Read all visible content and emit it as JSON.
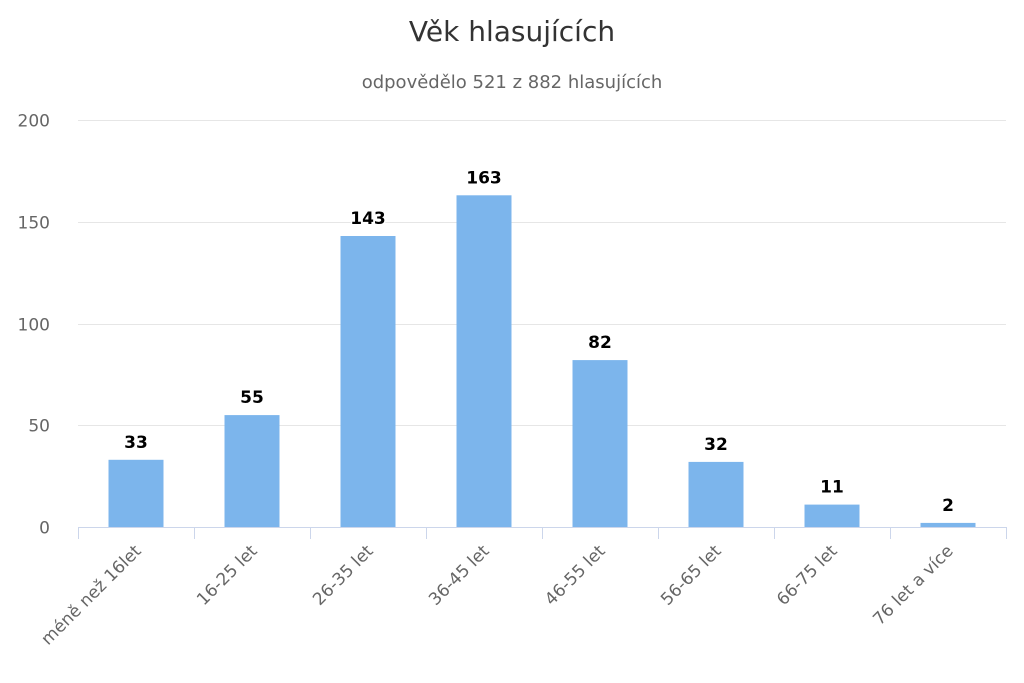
{
  "chart_data": {
    "type": "bar",
    "title": "Věk hlasujících",
    "subtitle": "odpovědělo 521 z 882 hlasujících",
    "categories": [
      "méně než 16let",
      "16-25 let",
      "26-35 let",
      "36-45 let",
      "46-55 let",
      "56-65 let",
      "66-75 let",
      "76 let a více"
    ],
    "values": [
      33,
      55,
      143,
      163,
      82,
      32,
      11,
      2
    ],
    "ylim": [
      0,
      200
    ],
    "yticks": [
      0,
      50,
      100,
      150,
      200
    ],
    "xlabel": "",
    "ylabel": "",
    "grid": true,
    "legend": "none",
    "bar_color": "#7cb5ec",
    "data_labels": true
  }
}
